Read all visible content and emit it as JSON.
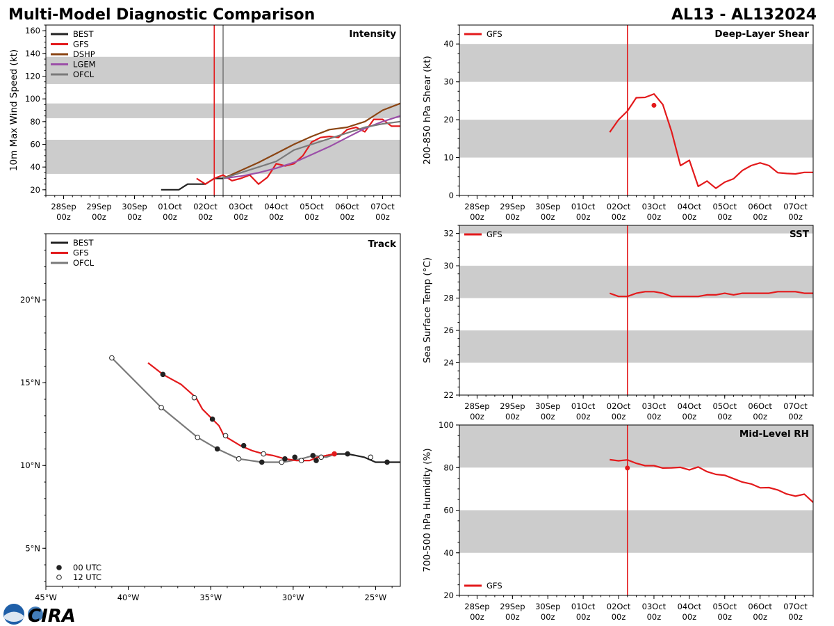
{
  "header": {
    "left": "Multi-Model Diagnostic Comparison",
    "right": "AL13 - AL132024"
  },
  "logo": {
    "text": "CIRA"
  },
  "colors": {
    "BEST": "#222222",
    "GFS": "#e31a1c",
    "DSHP": "#8b4513",
    "LGEM": "#9b4fa8",
    "OFCL": "#7a7a7a",
    "band": "#cccccc"
  },
  "time_ticks": [
    {
      "day": "28Sep",
      "hr": "00z"
    },
    {
      "day": "29Sep",
      "hr": "00z"
    },
    {
      "day": "30Sep",
      "hr": "00z"
    },
    {
      "day": "01Oct",
      "hr": "00z"
    },
    {
      "day": "02Oct",
      "hr": "00z"
    },
    {
      "day": "03Oct",
      "hr": "00z"
    },
    {
      "day": "04Oct",
      "hr": "00z"
    },
    {
      "day": "05Oct",
      "hr": "00z"
    },
    {
      "day": "06Oct",
      "hr": "00z"
    },
    {
      "day": "07Oct",
      "hr": "00z"
    }
  ],
  "chart_data": [
    {
      "id": "intensity",
      "type": "line",
      "title": "Intensity",
      "ylabel": "10m Max Wind Speed (kt)",
      "x_units": "days since 28Sep 00z",
      "xlim": [
        -0.5,
        9.5
      ],
      "ylim": [
        15,
        165
      ],
      "yticks": [
        20,
        40,
        60,
        80,
        100,
        120,
        140,
        160
      ],
      "bands": [
        [
          34,
          64
        ],
        [
          83,
          96
        ],
        [
          113,
          137
        ]
      ],
      "vlines": [
        {
          "x": 4.25,
          "color": "#e31a1c"
        },
        {
          "x": 4.5,
          "color": "#7a7a7a"
        }
      ],
      "legend": [
        "BEST",
        "GFS",
        "DSHP",
        "LGEM",
        "OFCL"
      ],
      "series": [
        {
          "name": "BEST",
          "x": [
            2.75,
            3.0,
            3.25,
            3.5,
            3.75,
            4.0,
            4.25,
            4.5
          ],
          "y": [
            20,
            20,
            20,
            25,
            25,
            25,
            30,
            30
          ]
        },
        {
          "name": "GFS",
          "x": [
            3.75,
            4.0,
            4.25,
            4.5,
            4.75,
            5.0,
            5.25,
            5.5,
            5.75,
            6.0,
            6.25,
            6.5,
            6.75,
            7.0,
            7.25,
            7.5,
            7.75,
            8.0,
            8.25,
            8.5,
            8.75,
            9.0,
            9.25,
            9.5
          ],
          "y": [
            30,
            25,
            30,
            33,
            28,
            30,
            33,
            25,
            31,
            43,
            41,
            43,
            50,
            62,
            66,
            67,
            66,
            73,
            75,
            71,
            82,
            82,
            76,
            76
          ]
        },
        {
          "name": "DSHP",
          "x": [
            4.5,
            5.0,
            5.5,
            6.0,
            6.5,
            7.0,
            7.5,
            8.0,
            8.5,
            9.0,
            9.5
          ],
          "y": [
            30,
            37,
            44,
            52,
            60,
            67,
            73,
            75,
            80,
            90,
            96
          ]
        },
        {
          "name": "LGEM",
          "x": [
            4.5,
            5.0,
            5.5,
            6.0,
            6.5,
            7.0,
            7.5,
            8.0,
            8.5,
            9.0,
            9.5
          ],
          "y": [
            30,
            32,
            35,
            39,
            44,
            51,
            58,
            66,
            74,
            80,
            85
          ]
        },
        {
          "name": "OFCL",
          "x": [
            4.5,
            5.0,
            5.5,
            6.0,
            6.5,
            7.0,
            7.5,
            8.0,
            8.5,
            9.0,
            9.5
          ],
          "y": [
            30,
            35,
            40,
            45,
            55,
            60,
            65,
            70,
            75,
            78,
            80
          ]
        }
      ]
    },
    {
      "id": "track",
      "type": "line",
      "title": "Track",
      "x_units": "degrees longitude (negative = W)",
      "y_units": "degrees latitude",
      "xlim": [
        -45,
        -23.5
      ],
      "ylim": [
        2.7,
        24
      ],
      "xticks": [
        {
          "v": -45,
          "label": "45°W"
        },
        {
          "v": -40,
          "label": "40°W"
        },
        {
          "v": -35,
          "label": "35°W"
        },
        {
          "v": -30,
          "label": "30°W"
        },
        {
          "v": -25,
          "label": "25°W"
        }
      ],
      "yticks": [
        {
          "v": 5,
          "label": "5°N"
        },
        {
          "v": 10,
          "label": "10°N"
        },
        {
          "v": 15,
          "label": "15°N"
        },
        {
          "v": 20,
          "label": "20°N"
        }
      ],
      "legend": [
        "BEST",
        "GFS",
        "OFCL"
      ],
      "marker_legend": [
        {
          "label": "00 UTC",
          "filled": true
        },
        {
          "label": "12 UTC",
          "filled": false
        }
      ],
      "series": [
        {
          "name": "BEST",
          "lon": [
            -23.5,
            -24.3,
            -25.0,
            -25.7,
            -26.7,
            -27.3,
            -28.0
          ],
          "lat": [
            10.2,
            10.2,
            10.2,
            10.5,
            10.7,
            10.7,
            10.6
          ]
        },
        {
          "name": "OFCL",
          "lon": [
            -27.4,
            -28.0,
            -28.8,
            -29.5,
            -30.6,
            -31.9,
            -33.3,
            -34.6,
            -35.8,
            -38.0,
            -41.0
          ],
          "lat": [
            10.7,
            10.5,
            10.6,
            10.4,
            10.2,
            10.2,
            10.4,
            11.0,
            11.7,
            13.5,
            16.5
          ]
        },
        {
          "name": "GFS",
          "lon": [
            -27.5,
            -28.5,
            -29.0,
            -29.8,
            -30.5,
            -31.2,
            -31.8,
            -32.5,
            -33.2,
            -34.2,
            -34.5,
            -34.9,
            -35.5,
            -35.9,
            -36.8,
            -37.9,
            -38.8
          ],
          "lat": [
            10.7,
            10.5,
            10.3,
            10.3,
            10.4,
            10.6,
            10.7,
            10.9,
            11.2,
            11.8,
            12.4,
            12.8,
            13.4,
            14.1,
            14.9,
            15.5,
            16.2
          ]
        }
      ],
      "markers": [
        {
          "series": "BEST",
          "lon": -24.3,
          "lat": 10.2,
          "filled": true
        },
        {
          "series": "BEST",
          "lon": -25.3,
          "lat": 10.5,
          "filled": false
        },
        {
          "series": "BEST",
          "lon": -26.7,
          "lat": 10.7,
          "filled": true
        },
        {
          "series": "GFS",
          "lon": -27.5,
          "lat": 10.7,
          "filled": true
        },
        {
          "series": "OFCL",
          "lon": -28.8,
          "lat": 10.6,
          "filled": true
        },
        {
          "series": "OFCL",
          "lon": -28.3,
          "lat": 10.5,
          "filled": false
        },
        {
          "series": "GFS",
          "lon": -28.6,
          "lat": 10.3,
          "filled": true
        },
        {
          "series": "OFCL",
          "lon": -29.5,
          "lat": 10.3,
          "filled": false
        },
        {
          "series": "GFS",
          "lon": -29.9,
          "lat": 10.5,
          "filled": true
        },
        {
          "series": "GFS",
          "lon": -30.5,
          "lat": 10.4,
          "filled": true
        },
        {
          "series": "OFCL",
          "lon": -30.7,
          "lat": 10.2,
          "filled": false
        },
        {
          "series": "OFCL",
          "lon": -31.9,
          "lat": 10.2,
          "filled": true
        },
        {
          "series": "GFS",
          "lon": -31.8,
          "lat": 10.7,
          "filled": false
        },
        {
          "series": "GFS",
          "lon": -33.0,
          "lat": 11.2,
          "filled": true
        },
        {
          "series": "OFCL",
          "lon": -33.3,
          "lat": 10.4,
          "filled": false
        },
        {
          "series": "GFS",
          "lon": -34.1,
          "lat": 11.8,
          "filled": false
        },
        {
          "series": "OFCL",
          "lon": -34.6,
          "lat": 11.0,
          "filled": true
        },
        {
          "series": "GFS",
          "lon": -34.9,
          "lat": 12.8,
          "filled": true
        },
        {
          "series": "OFCL",
          "lon": -35.8,
          "lat": 11.7,
          "filled": false
        },
        {
          "series": "GFS",
          "lon": -36.0,
          "lat": 14.1,
          "filled": false
        },
        {
          "series": "GFS",
          "lon": -37.9,
          "lat": 15.5,
          "filled": true
        },
        {
          "series": "OFCL",
          "lon": -38.0,
          "lat": 13.5,
          "filled": false
        },
        {
          "series": "OFCL",
          "lon": -41.0,
          "lat": 16.5,
          "filled": false
        }
      ]
    },
    {
      "id": "shear",
      "type": "line",
      "title": "Deep-Layer Shear",
      "ylabel": "200-850 hPa Shear (kt)",
      "x_units": "days since 28Sep 00z",
      "xlim": [
        -0.5,
        9.5
      ],
      "ylim": [
        0,
        45
      ],
      "yticks": [
        0,
        10,
        20,
        30,
        40
      ],
      "bands": [
        [
          10,
          20
        ],
        [
          30,
          40
        ]
      ],
      "vlines": [
        {
          "x": 4.25,
          "color": "#e31a1c"
        }
      ],
      "legend": [
        "GFS"
      ],
      "series": [
        {
          "name": "GFS",
          "x": [
            3.75,
            4.0,
            4.25,
            4.5,
            4.75,
            5.0,
            5.25,
            5.5,
            5.75,
            6.0,
            6.25,
            6.5,
            6.75,
            7.0,
            7.25,
            7.5,
            7.75,
            8.0,
            8.25,
            8.5,
            8.75,
            9.0,
            9.25,
            9.5
          ],
          "y": [
            16.7,
            20.0,
            22.3,
            25.8,
            25.9,
            26.8,
            24.0,
            16.8,
            7.9,
            9.3,
            2.4,
            3.8,
            1.9,
            3.5,
            4.4,
            6.6,
            7.9,
            8.6,
            7.9,
            6.0,
            5.8,
            5.7,
            6.1,
            6.1
          ]
        }
      ],
      "points": [
        {
          "x": 5.0,
          "y": 23.8
        }
      ]
    },
    {
      "id": "sst",
      "type": "line",
      "title": "SST",
      "ylabel": "Sea Surface Temp (°C)",
      "x_units": "days since 28Sep 00z",
      "xlim": [
        -0.5,
        9.5
      ],
      "ylim": [
        22,
        32.5
      ],
      "yticks": [
        22,
        24,
        26,
        28,
        30,
        32
      ],
      "bands": [
        [
          24,
          26
        ],
        [
          28,
          30
        ],
        [
          32,
          32.5
        ]
      ],
      "vlines": [
        {
          "x": 4.25,
          "color": "#e31a1c"
        }
      ],
      "legend": [
        "GFS"
      ],
      "series": [
        {
          "name": "GFS",
          "x": [
            3.75,
            4.0,
            4.25,
            4.5,
            4.75,
            5.0,
            5.25,
            5.5,
            5.75,
            6.0,
            6.25,
            6.5,
            6.75,
            7.0,
            7.25,
            7.5,
            7.75,
            8.0,
            8.25,
            8.5,
            8.75,
            9.0,
            9.25,
            9.5
          ],
          "y": [
            28.3,
            28.1,
            28.1,
            28.3,
            28.4,
            28.4,
            28.3,
            28.1,
            28.1,
            28.1,
            28.1,
            28.2,
            28.2,
            28.3,
            28.2,
            28.3,
            28.3,
            28.3,
            28.3,
            28.4,
            28.4,
            28.4,
            28.3,
            28.3
          ]
        }
      ]
    },
    {
      "id": "rh",
      "type": "line",
      "title": "Mid-Level RH",
      "ylabel": "700-500 hPa Humidity (%)",
      "x_units": "days since 28Sep 00z",
      "xlim": [
        -0.5,
        9.5
      ],
      "ylim": [
        20,
        100
      ],
      "yticks": [
        20,
        40,
        60,
        80,
        100
      ],
      "bands": [
        [
          40,
          60
        ],
        [
          80,
          100
        ]
      ],
      "vlines": [
        {
          "x": 4.25,
          "color": "#e31a1c"
        }
      ],
      "legend": [
        "GFS"
      ],
      "series": [
        {
          "name": "GFS",
          "x": [
            3.75,
            4.0,
            4.25,
            4.5,
            4.75,
            5.0,
            5.25,
            5.5,
            5.75,
            6.0,
            6.25,
            6.5,
            6.75,
            7.0,
            7.25,
            7.5,
            7.75,
            8.0,
            8.25,
            8.5,
            8.75,
            9.0,
            9.25,
            9.5
          ],
          "y": [
            83.7,
            83.2,
            83.6,
            82.0,
            80.9,
            80.9,
            79.8,
            79.9,
            80.1,
            78.9,
            80.3,
            78.1,
            76.8,
            76.4,
            74.8,
            73.2,
            72.3,
            70.5,
            70.6,
            69.5,
            67.6,
            66.6,
            67.5,
            63.7
          ]
        }
      ],
      "points": [
        {
          "x": 4.25,
          "y": 79.8
        }
      ]
    }
  ]
}
